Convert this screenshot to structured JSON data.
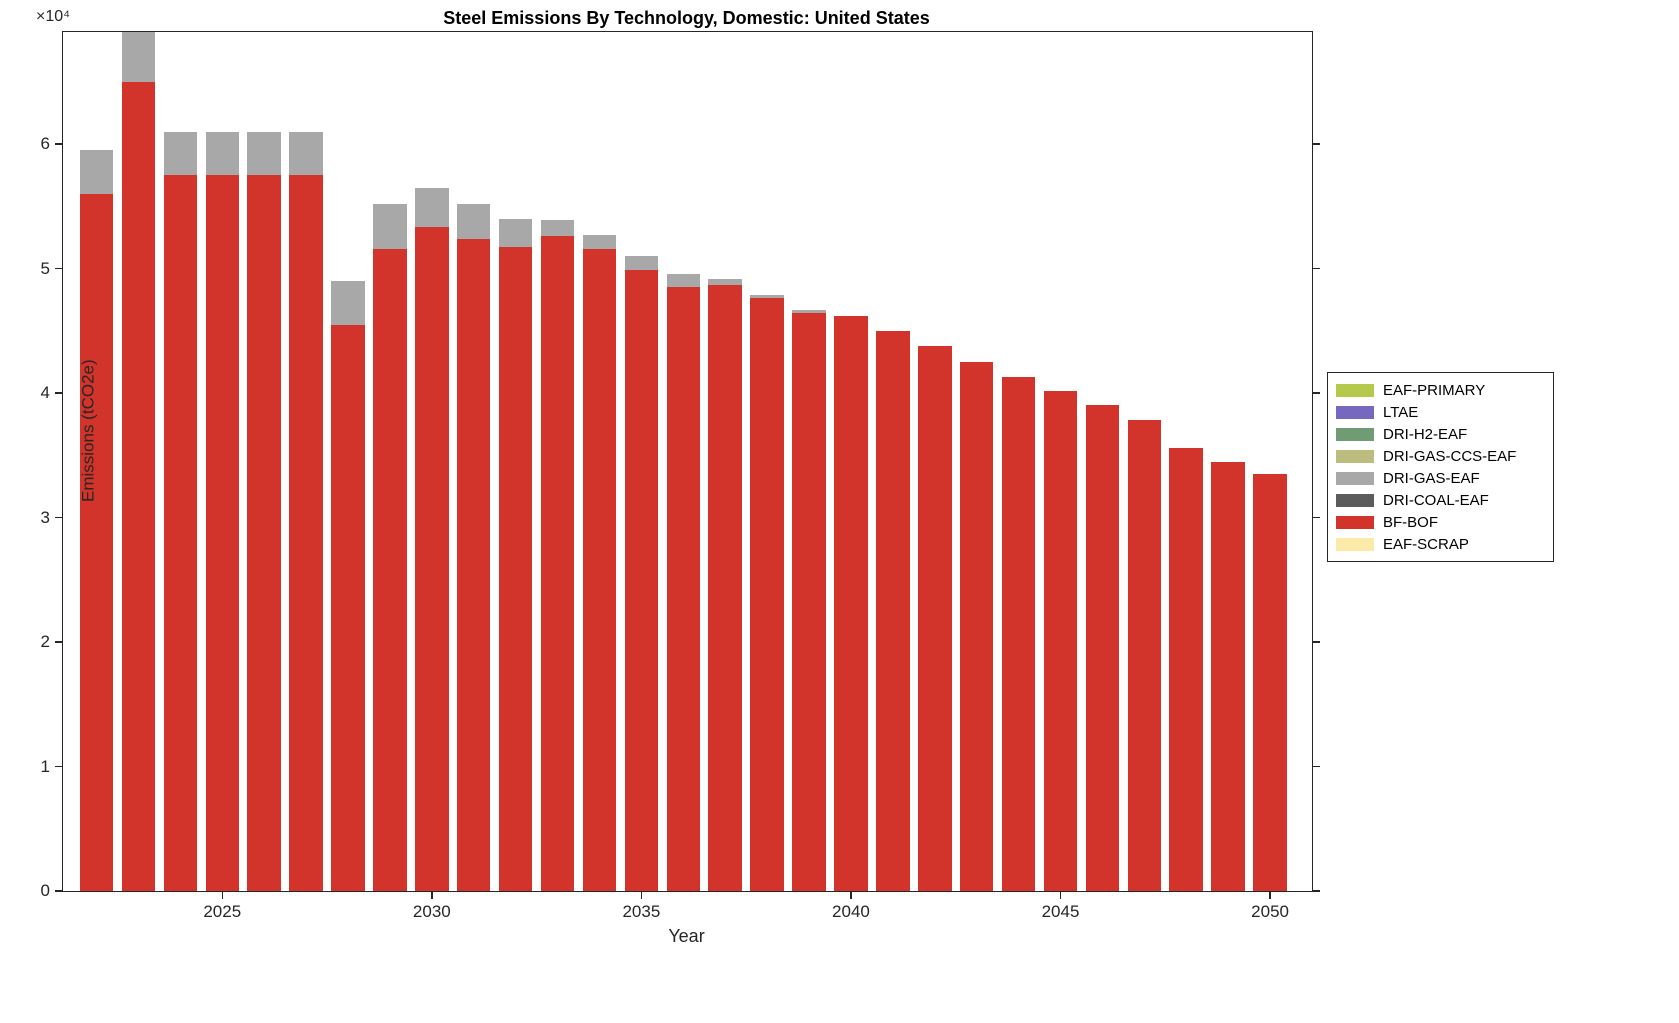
{
  "axes": {
    "y_multiplier": "×10⁴"
  },
  "chart_data": {
    "type": "bar",
    "stacked": true,
    "title": "Steel Emissions By Technology, Domestic: United States",
    "xlabel": "Year",
    "ylabel": "Emissions (tCO2e)",
    "x": [
      2022,
      2023,
      2024,
      2025,
      2026,
      2027,
      2028,
      2029,
      2030,
      2031,
      2032,
      2033,
      2034,
      2035,
      2036,
      2037,
      2038,
      2039,
      2040,
      2041,
      2042,
      2043,
      2044,
      2045,
      2046,
      2047,
      2048,
      2049,
      2050
    ],
    "series": [
      {
        "name": "BF-BOF",
        "color": "#d2342b",
        "values": [
          56000,
          65000,
          57500,
          57500,
          57500,
          57500,
          45500,
          51600,
          53300,
          52400,
          51700,
          52600,
          51600,
          49900,
          48500,
          48700,
          47600,
          46400,
          46200,
          45000,
          43800,
          42500,
          41300,
          40200,
          39000,
          37800,
          35600,
          34500,
          33500
        ]
      },
      {
        "name": "DRI-GAS-EAF",
        "color": "#a8a8a8",
        "values": [
          3500,
          4000,
          3500,
          3500,
          3500,
          3500,
          3500,
          3600,
          3200,
          2800,
          2300,
          1300,
          1100,
          1100,
          1100,
          500,
          300,
          300,
          0,
          0,
          0,
          0,
          0,
          0,
          0,
          0,
          0,
          0,
          0
        ]
      }
    ],
    "ylim": [
      0,
      69000
    ],
    "yticks": [
      0,
      10000,
      20000,
      30000,
      40000,
      50000,
      60000
    ],
    "ytick_labels": [
      "0",
      "1",
      "2",
      "3",
      "4",
      "5",
      "6"
    ],
    "xticks": [
      2025,
      2030,
      2035,
      2040,
      2045,
      2050
    ],
    "xtick_labels": [
      "2025",
      "2030",
      "2035",
      "2040",
      "2045",
      "2050"
    ],
    "grid": false,
    "legend_position": "right-outside",
    "legend": [
      {
        "label": "EAF-PRIMARY",
        "color": "#b5c94c"
      },
      {
        "label": "LTAE",
        "color": "#7568be"
      },
      {
        "label": "DRI-H2-EAF",
        "color": "#6f9c72"
      },
      {
        "label": "DRI-GAS-CCS-EAF",
        "color": "#bcbc7e"
      },
      {
        "label": "DRI-GAS-EAF",
        "color": "#a8a8a8"
      },
      {
        "label": "DRI-COAL-EAF",
        "color": "#5c5c5c"
      },
      {
        "label": "BF-BOF",
        "color": "#d2342b"
      },
      {
        "label": "EAF-SCRAP",
        "color": "#fceba8"
      }
    ]
  }
}
